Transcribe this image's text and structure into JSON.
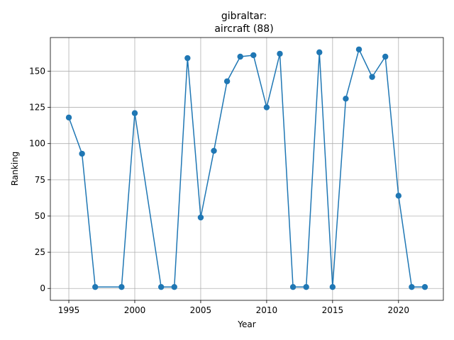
{
  "chart_data": {
    "type": "line",
    "title_line1": "gibraltar:",
    "title_line2": "aircraft (88)",
    "xlabel": "Year",
    "ylabel": "Ranking",
    "xlim": [
      1993.6,
      2023.4
    ],
    "ylim": [
      -8.2,
      173.2
    ],
    "xticks": [
      1995,
      2000,
      2005,
      2010,
      2015,
      2020
    ],
    "yticks": [
      0,
      25,
      50,
      75,
      100,
      125,
      150
    ],
    "grid": true,
    "marker": "circle",
    "line_color": "#1f77b4",
    "series": [
      {
        "x": [
          1995,
          1996,
          1997,
          1999,
          2000,
          2002,
          2003,
          2004,
          2005,
          2006,
          2007,
          2008,
          2009,
          2010,
          2011,
          2012,
          2013,
          2014,
          2015,
          2016,
          2017,
          2018,
          2019,
          2020,
          2021,
          2022
        ],
        "y": [
          118,
          93,
          1,
          1,
          121,
          1,
          1,
          159,
          49,
          95,
          143,
          160,
          161,
          125,
          162,
          1,
          1,
          163,
          1,
          131,
          165,
          146,
          160,
          64,
          1,
          1
        ]
      }
    ]
  }
}
